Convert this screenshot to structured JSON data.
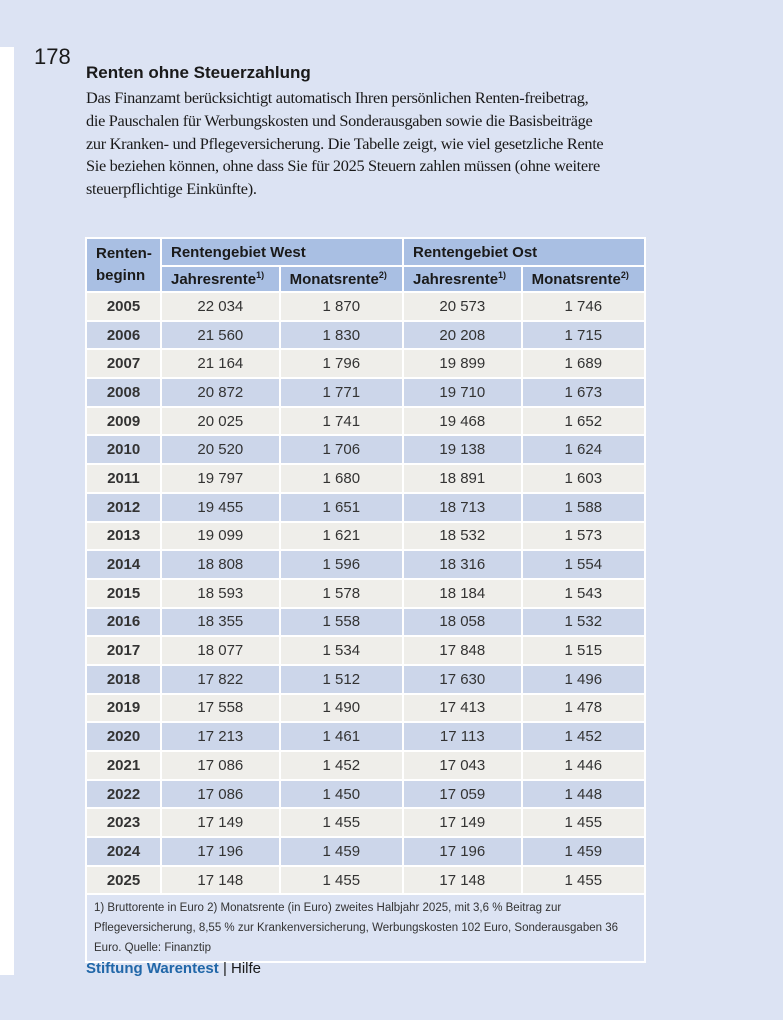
{
  "page_number": "178",
  "title": "Renten ohne Steuerzahlung",
  "intro": "Das Finanzamt berücksichtigt automatisch Ihren persönlichen Renten-freibetrag, die Pauschalen für Werbungskosten und Sonderausgaben sowie die Basisbeiträge zur Kranken- und Pflegeversicherung. Die Tabelle zeigt, wie viel gesetzliche Rente Sie beziehen können, ohne dass Sie für 2025 Steuern zahlen müssen (ohne weitere steuerpflichtige Einkünfte).",
  "table": {
    "col_year": "Renten-beginn",
    "west": "Rentengebiet West",
    "ost": "Rentengebiet Ost",
    "jahres": "Jahresrente",
    "monats": "Monatsrente",
    "sup1": "1)",
    "sup2": "2)",
    "rows": [
      [
        "2005",
        "22 034",
        "1 870",
        "20 573",
        "1 746"
      ],
      [
        "2006",
        "21 560",
        "1 830",
        "20 208",
        "1 715"
      ],
      [
        "2007",
        "21 164",
        "1 796",
        "19 899",
        "1 689"
      ],
      [
        "2008",
        "20 872",
        "1 771",
        "19 710",
        "1 673"
      ],
      [
        "2009",
        "20 025",
        "1 741",
        "19 468",
        "1 652"
      ],
      [
        "2010",
        "20 520",
        "1 706",
        "19 138",
        "1 624"
      ],
      [
        "2011",
        "19 797",
        "1 680",
        "18 891",
        "1 603"
      ],
      [
        "2012",
        "19 455",
        "1 651",
        "18 713",
        "1 588"
      ],
      [
        "2013",
        "19 099",
        "1 621",
        "18 532",
        "1 573"
      ],
      [
        "2014",
        "18 808",
        "1 596",
        "18 316",
        "1 554"
      ],
      [
        "2015",
        "18 593",
        "1 578",
        "18 184",
        "1 543"
      ],
      [
        "2016",
        "18 355",
        "1 558",
        "18 058",
        "1 532"
      ],
      [
        "2017",
        "18 077",
        "1 534",
        "17 848",
        "1 515"
      ],
      [
        "2018",
        "17 822",
        "1 512",
        "17 630",
        "1 496"
      ],
      [
        "2019",
        "17 558",
        "1 490",
        "17 413",
        "1 478"
      ],
      [
        "2020",
        "17 213",
        "1 461",
        "17 113",
        "1 452"
      ],
      [
        "2021",
        "17 086",
        "1 452",
        "17 043",
        "1 446"
      ],
      [
        "2022",
        "17 086",
        "1 450",
        "17 059",
        "1 448"
      ],
      [
        "2023",
        "17 149",
        "1 455",
        "17 149",
        "1 455"
      ],
      [
        "2024",
        "17 196",
        "1 459",
        "17 196",
        "1 459"
      ],
      [
        "2025",
        "17 148",
        "1 455",
        "17 148",
        "1 455"
      ]
    ],
    "footnote": "1) Bruttorente in Euro 2) Monatsrente (in Euro) zweites Halbjahr 2025, mit 3,6 % Beitrag zur Pflegeversicherung, 8,55 % zur Krankenversicherung, Werbungskosten 102 Euro, Sonderausgaben 36 Euro. Quelle: Finanztip"
  },
  "footer": {
    "brand": "Stiftung Warentest",
    "separator": " | ",
    "section": "Hilfe"
  },
  "colors": {
    "header": "#a9bfe3",
    "row_light": "#efeeea",
    "row_blue": "#ccd6ea",
    "background": "#dce3f3",
    "brand": "#2167a8"
  }
}
